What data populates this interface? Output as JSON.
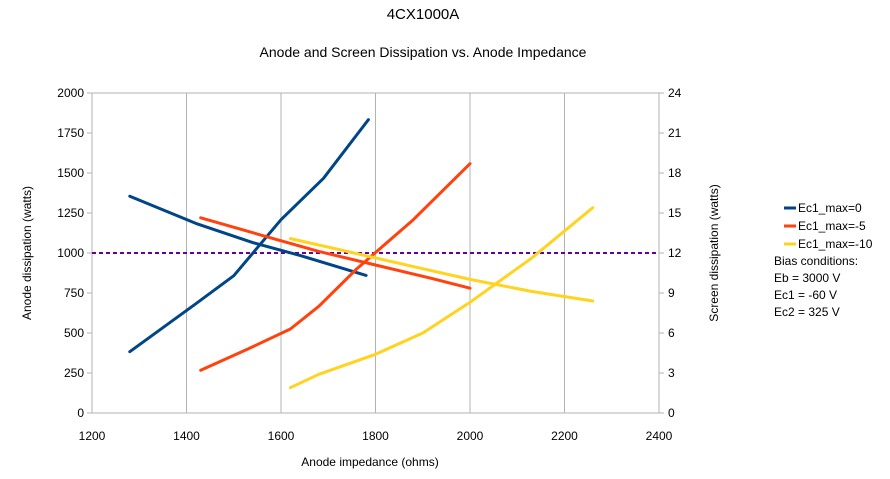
{
  "chart_data": {
    "type": "line",
    "title": "4CX1000A",
    "subtitle": "Anode and Screen Dissipation vs. Anode Impedance",
    "xlabel": "Anode impedance (ohms)",
    "ylabel": "Anode dissipation (watts)",
    "y2label": "Screen dissipation (watts)",
    "xlim": [
      1200,
      2400
    ],
    "ylim": [
      0,
      2000
    ],
    "y2lim": [
      0,
      24
    ],
    "xticks": [
      "1200",
      "1400",
      "1600",
      "1800",
      "2000",
      "2200",
      "2400"
    ],
    "yticks": [
      "0",
      "250",
      "500",
      "750",
      "1000",
      "1250",
      "1500",
      "1750",
      "2000"
    ],
    "y2ticks": [
      "0",
      "3",
      "6",
      "9",
      "12",
      "15",
      "18",
      "21",
      "24"
    ],
    "grid": "vertical",
    "reference_line": {
      "axis": "y",
      "value": 1000,
      "style": "dashed",
      "color": "#660099"
    },
    "legend_position": "right",
    "series": [
      {
        "name": "Ec1_max=0",
        "color": "#004586",
        "anode": {
          "x": [
            1280,
            1420,
            1540,
            1640,
            1780
          ],
          "y": [
            1355,
            1185,
            1065,
            985,
            860
          ]
        },
        "screen": {
          "x": [
            1280,
            1420,
            1500,
            1600,
            1690,
            1785
          ],
          "y": [
            4.6,
            8.2,
            10.3,
            14.5,
            17.6,
            22.0
          ]
        }
      },
      {
        "name": "Ec1_max=-5",
        "color": "#ff420e",
        "anode": {
          "x": [
            1430,
            1560,
            1680,
            1800,
            1920,
            2000
          ],
          "y": [
            1220,
            1110,
            1010,
            925,
            840,
            780
          ]
        },
        "screen": {
          "x": [
            1430,
            1530,
            1620,
            1680,
            1760,
            1880,
            2000
          ],
          "y": [
            3.2,
            4.8,
            6.3,
            8.0,
            10.8,
            14.5,
            18.7
          ]
        }
      },
      {
        "name": "Ec1_max=-10",
        "color": "#ffd320",
        "anode": {
          "x": [
            1620,
            1740,
            1880,
            2000,
            2130,
            2260
          ],
          "y": [
            1090,
            1010,
            915,
            835,
            760,
            700
          ]
        },
        "screen": {
          "x": [
            1620,
            1680,
            1800,
            1900,
            2000,
            2130,
            2260
          ],
          "y": [
            1.9,
            2.9,
            4.4,
            6.0,
            8.3,
            11.6,
            15.4
          ]
        }
      }
    ],
    "notes": [
      "Bias conditions:",
      "Eb = 3000 V",
      "Ec1 = -60 V",
      "Ec2 = 325 V"
    ]
  },
  "colors": {
    "grid": "#b3b3b3",
    "axis": "#b3b3b3",
    "text": "#000000"
  }
}
